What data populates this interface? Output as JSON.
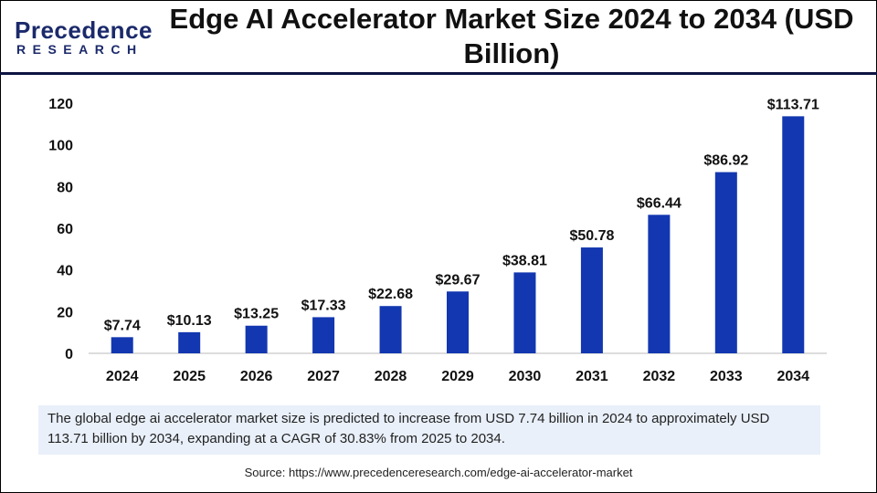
{
  "logo": {
    "line1": "Precedence",
    "line2": "RESEARCH"
  },
  "title": "Edge AI Accelerator Market Size 2024 to 2034 (USD Billion)",
  "colors": {
    "bar": "#1237b0",
    "header_rule": "#0d1440",
    "note_bg": "#e9f0fa"
  },
  "chart_data": {
    "type": "bar",
    "title": "Edge AI Accelerator Market Size 2024 to 2034 (USD Billion)",
    "categories": [
      "2024",
      "2025",
      "2026",
      "2027",
      "2028",
      "2029",
      "2030",
      "2031",
      "2032",
      "2033",
      "2034"
    ],
    "values": [
      7.74,
      10.13,
      13.25,
      17.33,
      22.68,
      29.67,
      38.81,
      50.78,
      66.44,
      86.92,
      113.71
    ],
    "data_labels": [
      "$7.74",
      "$10.13",
      "$13.25",
      "$17.33",
      "$22.68",
      "$29.67",
      "$38.81",
      "$50.78",
      "$66.44",
      "$86.92",
      "$113.71"
    ],
    "yticks": [
      "0",
      "20",
      "40",
      "60",
      "80",
      "100",
      "120"
    ],
    "ylim": [
      0,
      120
    ],
    "xlabel": "",
    "ylabel": "",
    "grid": false,
    "legend": "none"
  },
  "note": "The global edge ai accelerator market size is predicted to increase from USD 7.74 billion in 2024 to approximately USD 113.71 billion by 2034, expanding at a CAGR of 30.83% from 2025 to 2034.",
  "source": "Source: https://www.precedenceresearch.com/edge-ai-accelerator-market"
}
